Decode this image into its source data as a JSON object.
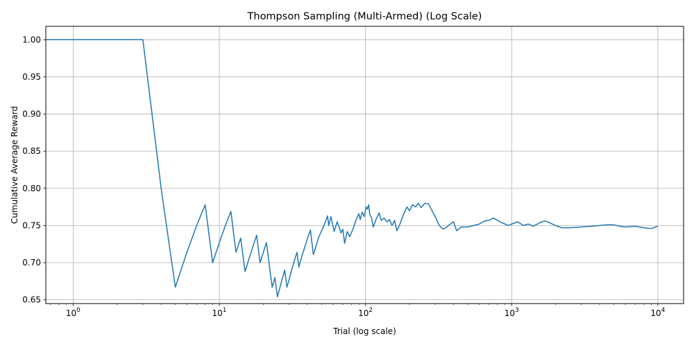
{
  "chart_data": {
    "type": "line",
    "title": "Thompson Sampling (Multi-Armed) (Log Scale)",
    "xlabel": "Trial (log scale)",
    "ylabel": "Cumulative Average Reward",
    "x_scale": "log",
    "xlim": [
      0.65,
      15000
    ],
    "ylim": [
      0.645,
      1.018
    ],
    "grid": true,
    "line_color": "#1f77b4",
    "x_ticks": [
      {
        "value": 1,
        "base": "10",
        "exp": "0"
      },
      {
        "value": 10,
        "base": "10",
        "exp": "1"
      },
      {
        "value": 100,
        "base": "10",
        "exp": "2"
      },
      {
        "value": 1000,
        "base": "10",
        "exp": "3"
      },
      {
        "value": 10000,
        "base": "10",
        "exp": "4"
      }
    ],
    "y_ticks": [
      "0.65",
      "0.70",
      "0.75",
      "0.80",
      "0.85",
      "0.90",
      "0.95",
      "1.00"
    ],
    "series": [
      {
        "points": [
          [
            0.65,
            1.0
          ],
          [
            1,
            1.0
          ],
          [
            2,
            1.0
          ],
          [
            3,
            1.0
          ],
          [
            4,
            0.8
          ],
          [
            5,
            0.667
          ],
          [
            6,
            0.714
          ],
          [
            7,
            0.75
          ],
          [
            8,
            0.778
          ],
          [
            9,
            0.7
          ],
          [
            10,
            0.727
          ],
          [
            11,
            0.75
          ],
          [
            12,
            0.769
          ],
          [
            13,
            0.714
          ],
          [
            14,
            0.733
          ],
          [
            15,
            0.688
          ],
          [
            16,
            0.706
          ],
          [
            17,
            0.722
          ],
          [
            18,
            0.737
          ],
          [
            19,
            0.7
          ],
          [
            20,
            0.714
          ],
          [
            21,
            0.727
          ],
          [
            22,
            0.696
          ],
          [
            23,
            0.667
          ],
          [
            24,
            0.68
          ],
          [
            25,
            0.654
          ],
          [
            26,
            0.667
          ],
          [
            27,
            0.679
          ],
          [
            28,
            0.69
          ],
          [
            29,
            0.667
          ],
          [
            30,
            0.677
          ],
          [
            31,
            0.688
          ],
          [
            32,
            0.697
          ],
          [
            33,
            0.706
          ],
          [
            34,
            0.714
          ],
          [
            35,
            0.694
          ],
          [
            36,
            0.703
          ],
          [
            37,
            0.711
          ],
          [
            38,
            0.718
          ],
          [
            39,
            0.725
          ],
          [
            40,
            0.732
          ],
          [
            41,
            0.738
          ],
          [
            42,
            0.744
          ],
          [
            43,
            0.727
          ],
          [
            44,
            0.711
          ],
          [
            45,
            0.717
          ],
          [
            48,
            0.735
          ],
          [
            52,
            0.75
          ],
          [
            55,
            0.763
          ],
          [
            56,
            0.75
          ],
          [
            58,
            0.762
          ],
          [
            61,
            0.742
          ],
          [
            64,
            0.755
          ],
          [
            66,
            0.748
          ],
          [
            68,
            0.74
          ],
          [
            70,
            0.745
          ],
          [
            72,
            0.726
          ],
          [
            75,
            0.742
          ],
          [
            78,
            0.735
          ],
          [
            82,
            0.745
          ],
          [
            86,
            0.757
          ],
          [
            90,
            0.766
          ],
          [
            92,
            0.758
          ],
          [
            95,
            0.768
          ],
          [
            98,
            0.762
          ],
          [
            101,
            0.775
          ],
          [
            103,
            0.772
          ],
          [
            105,
            0.778
          ],
          [
            107,
            0.765
          ],
          [
            110,
            0.76
          ],
          [
            113,
            0.748
          ],
          [
            118,
            0.758
          ],
          [
            124,
            0.767
          ],
          [
            128,
            0.757
          ],
          [
            134,
            0.76
          ],
          [
            140,
            0.755
          ],
          [
            146,
            0.758
          ],
          [
            152,
            0.75
          ],
          [
            158,
            0.757
          ],
          [
            164,
            0.743
          ],
          [
            172,
            0.752
          ],
          [
            182,
            0.765
          ],
          [
            192,
            0.775
          ],
          [
            200,
            0.77
          ],
          [
            210,
            0.778
          ],
          [
            220,
            0.775
          ],
          [
            230,
            0.78
          ],
          [
            240,
            0.774
          ],
          [
            255,
            0.78
          ],
          [
            270,
            0.779
          ],
          [
            285,
            0.77
          ],
          [
            300,
            0.762
          ],
          [
            320,
            0.75
          ],
          [
            340,
            0.745
          ],
          [
            360,
            0.748
          ],
          [
            380,
            0.752
          ],
          [
            400,
            0.755
          ],
          [
            420,
            0.743
          ],
          [
            450,
            0.748
          ],
          [
            500,
            0.748
          ],
          [
            550,
            0.75
          ],
          [
            600,
            0.752
          ],
          [
            650,
            0.756
          ],
          [
            700,
            0.757
          ],
          [
            750,
            0.76
          ],
          [
            800,
            0.757
          ],
          [
            850,
            0.754
          ],
          [
            900,
            0.752
          ],
          [
            950,
            0.75
          ],
          [
            1000,
            0.752
          ],
          [
            1100,
            0.755
          ],
          [
            1200,
            0.75
          ],
          [
            1300,
            0.752
          ],
          [
            1400,
            0.749
          ],
          [
            1500,
            0.752
          ],
          [
            1600,
            0.755
          ],
          [
            1700,
            0.756
          ],
          [
            1800,
            0.754
          ],
          [
            2000,
            0.75
          ],
          [
            2200,
            0.747
          ],
          [
            2500,
            0.747
          ],
          [
            3000,
            0.748
          ],
          [
            3500,
            0.749
          ],
          [
            4000,
            0.75
          ],
          [
            4500,
            0.751
          ],
          [
            5000,
            0.751
          ],
          [
            5500,
            0.749
          ],
          [
            6000,
            0.748
          ],
          [
            7000,
            0.749
          ],
          [
            8000,
            0.747
          ],
          [
            9000,
            0.746
          ],
          [
            10000,
            0.749
          ]
        ]
      }
    ]
  }
}
